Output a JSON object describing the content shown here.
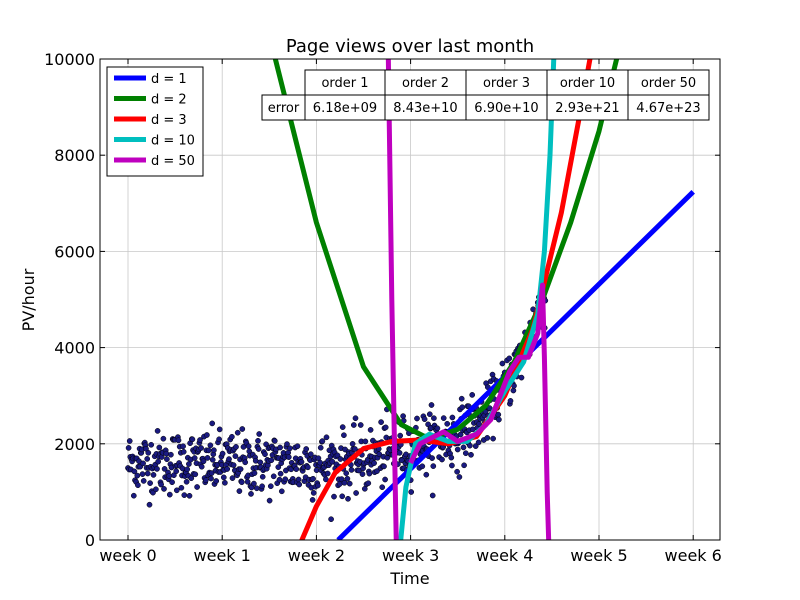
{
  "chart_data": {
    "type": "scatter",
    "title": "Page views over last month",
    "xlabel": "Time",
    "ylabel": "PV/hour",
    "xlim": [
      -0.3,
      6.3
    ],
    "ylim": [
      0,
      10000
    ],
    "x_unit": "week",
    "x_ticks": [
      {
        "value": 0,
        "label": "week 0"
      },
      {
        "value": 1,
        "label": "week 1"
      },
      {
        "value": 2,
        "label": "week 2"
      },
      {
        "value": 3,
        "label": "week 3"
      },
      {
        "value": 4,
        "label": "week 4"
      },
      {
        "value": 5,
        "label": "week 5"
      },
      {
        "value": 6,
        "label": "week 6"
      }
    ],
    "y_ticks": [
      {
        "value": 0,
        "label": "0"
      },
      {
        "value": 2000,
        "label": "2000"
      },
      {
        "value": 4000,
        "label": "4000"
      },
      {
        "value": 6000,
        "label": "6000"
      },
      {
        "value": 8000,
        "label": "8000"
      },
      {
        "value": 10000,
        "label": "10000"
      }
    ],
    "grid": true,
    "legend_position": "top-left",
    "scatter": {
      "name": "page views",
      "color": "#1a1a80",
      "x_range": [
        0.0,
        4.43
      ],
      "trend": [
        {
          "x": 0.0,
          "y": 1600
        },
        {
          "x": 1.0,
          "y": 1600
        },
        {
          "x": 2.0,
          "y": 1550
        },
        {
          "x": 2.5,
          "y": 1650
        },
        {
          "x": 3.0,
          "y": 1950
        },
        {
          "x": 3.5,
          "y": 2150
        },
        {
          "x": 3.8,
          "y": 2600
        },
        {
          "x": 4.0,
          "y": 3200
        },
        {
          "x": 4.2,
          "y": 3900
        },
        {
          "x": 4.4,
          "y": 5000
        }
      ],
      "spread": 330
    },
    "series": [
      {
        "name": "d = 1",
        "color": "#0000ff",
        "points": [
          {
            "x": 2.23,
            "y": 0
          },
          {
            "x": 6.0,
            "y": 7240
          }
        ]
      },
      {
        "name": "d = 2",
        "color": "#008000",
        "points": [
          {
            "x": 1.5,
            "y": 10500
          },
          {
            "x": 2.0,
            "y": 6600
          },
          {
            "x": 2.5,
            "y": 3600
          },
          {
            "x": 2.9,
            "y": 2400
          },
          {
            "x": 3.2,
            "y": 2100
          },
          {
            "x": 3.5,
            "y": 2300
          },
          {
            "x": 3.8,
            "y": 2800
          },
          {
            "x": 4.1,
            "y": 3700
          },
          {
            "x": 4.4,
            "y": 5000
          },
          {
            "x": 4.7,
            "y": 6600
          },
          {
            "x": 5.0,
            "y": 8500
          },
          {
            "x": 5.25,
            "y": 10500
          }
        ]
      },
      {
        "name": "d = 3",
        "color": "#ff0000",
        "points": [
          {
            "x": 1.78,
            "y": -300
          },
          {
            "x": 2.0,
            "y": 700
          },
          {
            "x": 2.2,
            "y": 1400
          },
          {
            "x": 2.5,
            "y": 1900
          },
          {
            "x": 2.8,
            "y": 2050
          },
          {
            "x": 3.1,
            "y": 2080
          },
          {
            "x": 3.4,
            "y": 2000
          },
          {
            "x": 3.7,
            "y": 2150
          },
          {
            "x": 4.0,
            "y": 3000
          },
          {
            "x": 4.3,
            "y": 4400
          },
          {
            "x": 4.6,
            "y": 6800
          },
          {
            "x": 4.83,
            "y": 9200
          },
          {
            "x": 4.95,
            "y": 10500
          }
        ]
      },
      {
        "name": "d = 10",
        "color": "#00bfbf",
        "points": [
          {
            "x": 2.88,
            "y": -300
          },
          {
            "x": 2.95,
            "y": 1100
          },
          {
            "x": 3.05,
            "y": 2000
          },
          {
            "x": 3.2,
            "y": 2200
          },
          {
            "x": 3.4,
            "y": 2050
          },
          {
            "x": 3.6,
            "y": 2050
          },
          {
            "x": 3.8,
            "y": 2400
          },
          {
            "x": 4.0,
            "y": 3100
          },
          {
            "x": 4.2,
            "y": 3700
          },
          {
            "x": 4.35,
            "y": 4700
          },
          {
            "x": 4.42,
            "y": 6000
          },
          {
            "x": 4.48,
            "y": 8000
          },
          {
            "x": 4.53,
            "y": 10500
          }
        ]
      },
      {
        "name": "d = 50",
        "color": "#bf00bf",
        "points": [
          {
            "x": 2.76,
            "y": 10500
          },
          {
            "x": 2.8,
            "y": 5000
          },
          {
            "x": 2.85,
            "y": -300
          }
        ],
        "points_2": [
          {
            "x": 3.0,
            "y": 1600
          },
          {
            "x": 3.1,
            "y": 2000
          },
          {
            "x": 3.2,
            "y": 2100
          },
          {
            "x": 3.35,
            "y": 2250
          },
          {
            "x": 3.5,
            "y": 2050
          },
          {
            "x": 3.7,
            "y": 2200
          },
          {
            "x": 3.85,
            "y": 2500
          },
          {
            "x": 3.95,
            "y": 3000
          },
          {
            "x": 4.05,
            "y": 3500
          },
          {
            "x": 4.15,
            "y": 3800
          },
          {
            "x": 4.25,
            "y": 3800
          },
          {
            "x": 4.35,
            "y": 4300
          },
          {
            "x": 4.4,
            "y": 5300
          },
          {
            "x": 4.42,
            "y": 3800
          },
          {
            "x": 4.45,
            "y": 1000
          },
          {
            "x": 4.47,
            "y": -300
          }
        ]
      }
    ],
    "table": {
      "columns": [
        "order 1",
        "order 2",
        "order 3",
        "order 10",
        "order 50"
      ],
      "row_label": "error",
      "values": [
        "6.18e+09",
        "8.43e+10",
        "6.90e+10",
        "2.93e+21",
        "4.67e+23"
      ]
    }
  }
}
